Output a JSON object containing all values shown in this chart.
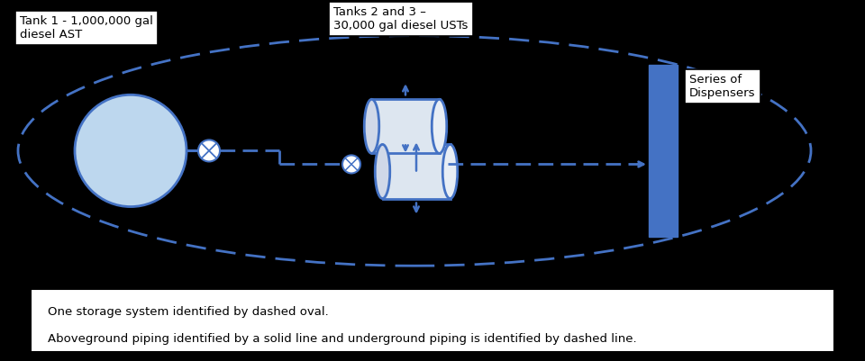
{
  "bg_color": "#000000",
  "blue": "#4472C4",
  "light_blue_fill": "#BDD7EE",
  "white": "#ffffff",
  "black": "#000000",
  "tank1_label": "Tank 1 - 1,000,000 gal\ndiesel AST",
  "tank23_label": "Tanks 2 and 3 –\n30,000 gal diesel USTs",
  "dispenser_label": "Series of\nDispensers",
  "legend_line1": "One storage system identified by dashed oval.",
  "legend_line2": "Aboveground piping identified by a solid line and underground piping is identified by dashed line."
}
